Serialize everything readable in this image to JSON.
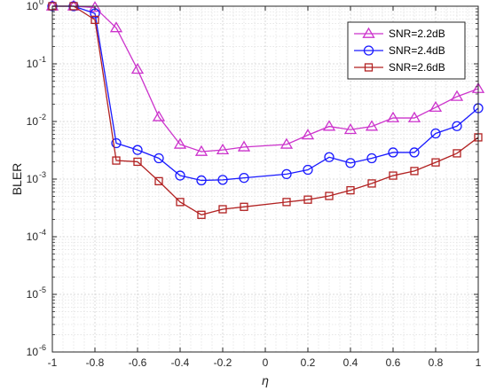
{
  "chart_data": {
    "type": "line",
    "xlabel": "η",
    "ylabel": "BLER",
    "xlim": [
      -1,
      1
    ],
    "ylim": [
      1e-06,
      1
    ],
    "yscale": "log",
    "grid": true,
    "minor_grid": true,
    "legend_position": "top-right",
    "x_ticks": [
      -1,
      -0.8,
      -0.6,
      -0.4,
      -0.2,
      0,
      0.2,
      0.4,
      0.6,
      0.8,
      1
    ],
    "x_tick_labels": [
      "-1",
      "-0.8",
      "-0.6",
      "-0.4",
      "-0.2",
      "0",
      "0.2",
      "0.4",
      "0.6",
      "0.8",
      "1"
    ],
    "y_ticks": [
      {
        "value": 1,
        "base": "10",
        "exp": "0"
      },
      {
        "value": 0.1,
        "base": "10",
        "exp": "-1"
      },
      {
        "value": 0.01,
        "base": "10",
        "exp": "-2"
      },
      {
        "value": 0.001,
        "base": "10",
        "exp": "-3"
      },
      {
        "value": 0.0001,
        "base": "10",
        "exp": "-4"
      },
      {
        "value": 1e-05,
        "base": "10",
        "exp": "-5"
      },
      {
        "value": 1e-06,
        "base": "10",
        "exp": "-6"
      }
    ],
    "x": [
      -1,
      -0.9,
      -0.8,
      -0.7,
      -0.6,
      -0.5,
      -0.4,
      -0.3,
      -0.2,
      -0.1,
      0.1,
      0.2,
      0.3,
      0.4,
      0.5,
      0.6,
      0.7,
      0.8,
      0.9,
      1
    ],
    "series": [
      {
        "name": "SNR=2.2dB",
        "color": "#cc33cc",
        "marker": "triangle",
        "values": [
          1,
          1,
          0.95,
          0.42,
          0.08,
          0.012,
          0.004,
          0.003,
          0.0032,
          0.0036,
          0.004,
          0.0058,
          0.0082,
          0.0072,
          0.0082,
          0.0115,
          0.0115,
          0.0175,
          0.027,
          0.037
        ]
      },
      {
        "name": "SNR=2.4dB",
        "color": "#1a1aff",
        "marker": "circle",
        "values": [
          1,
          1,
          0.75,
          0.0042,
          0.0032,
          0.0023,
          0.00115,
          0.00095,
          0.00097,
          0.00105,
          0.00122,
          0.00145,
          0.0024,
          0.0019,
          0.0023,
          0.0029,
          0.0029,
          0.0062,
          0.0083,
          0.017
        ]
      },
      {
        "name": "SNR=2.6dB",
        "color": "#b22222",
        "marker": "square",
        "values": [
          1,
          1,
          0.58,
          0.0021,
          0.002,
          0.00092,
          0.0004,
          0.00024,
          0.0003,
          0.00033,
          0.0004,
          0.00044,
          0.00051,
          0.00064,
          0.00084,
          0.00115,
          0.00138,
          0.00195,
          0.0028,
          0.0053
        ]
      }
    ]
  }
}
